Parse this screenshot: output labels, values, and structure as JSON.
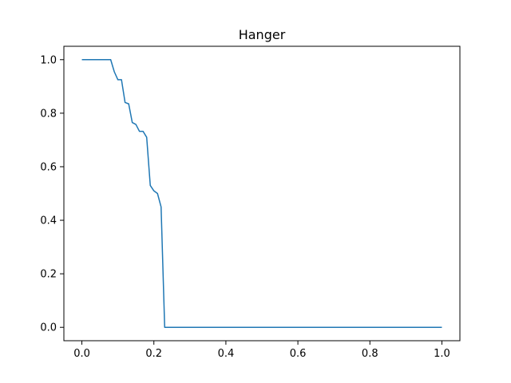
{
  "chart_data": {
    "type": "line",
    "title": "Hanger",
    "xlabel": "",
    "ylabel": "",
    "xlim": [
      -0.05,
      1.05
    ],
    "ylim": [
      -0.05,
      1.05
    ],
    "xticks": [
      0.0,
      0.2,
      0.4,
      0.6,
      0.8,
      1.0
    ],
    "yticks": [
      0.0,
      0.2,
      0.4,
      0.6,
      0.8,
      1.0
    ],
    "xtick_labels": [
      "0.0",
      "0.2",
      "0.4",
      "0.6",
      "0.8",
      "1.0"
    ],
    "ytick_labels": [
      "0.0",
      "0.2",
      "0.4",
      "0.6",
      "0.8",
      "1.0"
    ],
    "grid": false,
    "line_color": "#1f77b4",
    "series": [
      {
        "x": [
          0.0,
          0.01,
          0.02,
          0.03,
          0.04,
          0.05,
          0.06,
          0.07,
          0.08,
          0.09,
          0.1,
          0.11,
          0.12,
          0.13,
          0.14,
          0.15,
          0.16,
          0.17,
          0.18,
          0.19,
          0.2,
          0.21,
          0.22,
          0.23,
          0.24,
          0.3,
          0.4,
          0.5,
          0.6,
          0.7,
          0.8,
          0.9,
          1.0
        ],
        "y": [
          1.0,
          1.0,
          1.0,
          1.0,
          1.0,
          1.0,
          1.0,
          1.0,
          1.0,
          0.955,
          0.925,
          0.925,
          0.84,
          0.835,
          0.765,
          0.758,
          0.732,
          0.732,
          0.71,
          0.53,
          0.51,
          0.5,
          0.45,
          0.0,
          0.0,
          0.0,
          0.0,
          0.0,
          0.0,
          0.0,
          0.0,
          0.0,
          0.0
        ]
      }
    ]
  }
}
